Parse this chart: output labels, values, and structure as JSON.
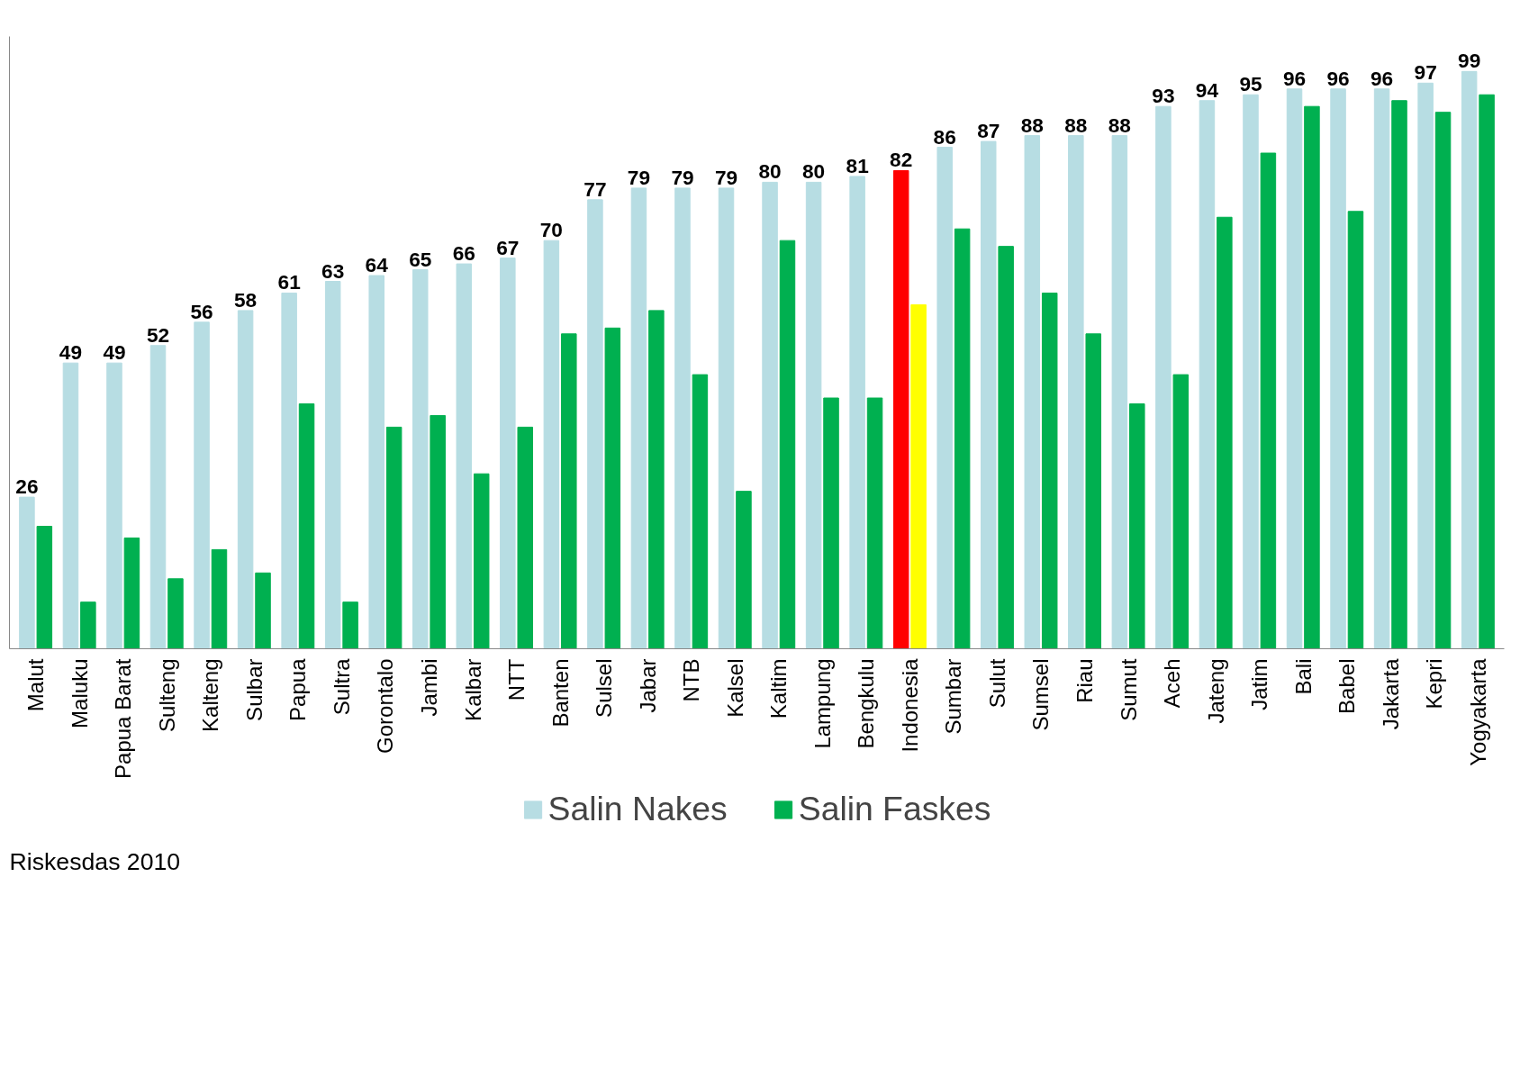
{
  "chart_data": {
    "type": "bar",
    "categories": [
      "Malut",
      "Maluku",
      "Papua Barat",
      "Sulteng",
      "Kalteng",
      "Sulbar",
      "Papua",
      "Sultra",
      "Gorontalo",
      "Jambi",
      "Kalbar",
      "NTT",
      "Banten",
      "Sulsel",
      "Jabar",
      "NTB",
      "Kalsel",
      "Kaltim",
      "Lampung",
      "Bengkulu",
      "Indonesia",
      "Sumbar",
      "Sulut",
      "Sumsel",
      "Riau",
      "Sumut",
      "Aceh",
      "Jateng",
      "Jatim",
      "Bali",
      "Babel",
      "Jakarta",
      "Kepri",
      "Yogyakarta"
    ],
    "series": [
      {
        "name": "Salin Nakes",
        "color": "#b7dde3",
        "colors": [
          "#b7dde3",
          "#b7dde3",
          "#b7dde3",
          "#b7dde3",
          "#b7dde3",
          "#b7dde3",
          "#b7dde3",
          "#b7dde3",
          "#b7dde3",
          "#b7dde3",
          "#b7dde3",
          "#b7dde3",
          "#b7dde3",
          "#b7dde3",
          "#b7dde3",
          "#b7dde3",
          "#b7dde3",
          "#b7dde3",
          "#b7dde3",
          "#b7dde3",
          "#ff0000",
          "#b7dde3",
          "#b7dde3",
          "#b7dde3",
          "#b7dde3",
          "#b7dde3",
          "#b7dde3",
          "#b7dde3",
          "#b7dde3",
          "#b7dde3",
          "#b7dde3",
          "#b7dde3",
          "#b7dde3",
          "#b7dde3"
        ],
        "values": [
          26,
          49,
          49,
          52,
          56,
          58,
          61,
          63,
          64,
          65,
          66,
          67,
          70,
          77,
          79,
          79,
          79,
          80,
          80,
          81,
          82,
          86,
          87,
          88,
          88,
          88,
          93,
          94,
          95,
          96,
          96,
          96,
          97,
          99
        ],
        "value_labels": [
          "26",
          "49",
          "49",
          "52",
          "56",
          "58",
          "61",
          "63",
          "64",
          "65",
          "66",
          "67",
          "70",
          "77",
          "79",
          "79",
          "79",
          "80",
          "80",
          "81",
          "82",
          "86",
          "87",
          "88",
          "88",
          "88",
          "93",
          "94",
          "95",
          "96",
          "96",
          "96",
          "97",
          "99"
        ]
      },
      {
        "name": "Salin Faskes",
        "color": "#00b050",
        "colors": [
          "#00b050",
          "#00b050",
          "#00b050",
          "#00b050",
          "#00b050",
          "#00b050",
          "#00b050",
          "#00b050",
          "#00b050",
          "#00b050",
          "#00b050",
          "#00b050",
          "#00b050",
          "#00b050",
          "#00b050",
          "#00b050",
          "#00b050",
          "#00b050",
          "#00b050",
          "#00b050",
          "#ffff00",
          "#00b050",
          "#00b050",
          "#00b050",
          "#00b050",
          "#00b050",
          "#00b050",
          "#00b050",
          "#00b050",
          "#00b050",
          "#00b050",
          "#00b050",
          "#00b050",
          "#00b050"
        ],
        "values": [
          21,
          8,
          19,
          12,
          17,
          13,
          42,
          8,
          38,
          40,
          30,
          38,
          54,
          55,
          58,
          47,
          27,
          70,
          43,
          43,
          59,
          72,
          69,
          61,
          54,
          42,
          47,
          74,
          85,
          93,
          75,
          94,
          92,
          95
        ]
      }
    ],
    "ylim": [
      0,
      105
    ],
    "tick_labels": "x",
    "grid": false,
    "legend": "bottom",
    "annotations": [
      "Riskesdas 2010"
    ]
  }
}
